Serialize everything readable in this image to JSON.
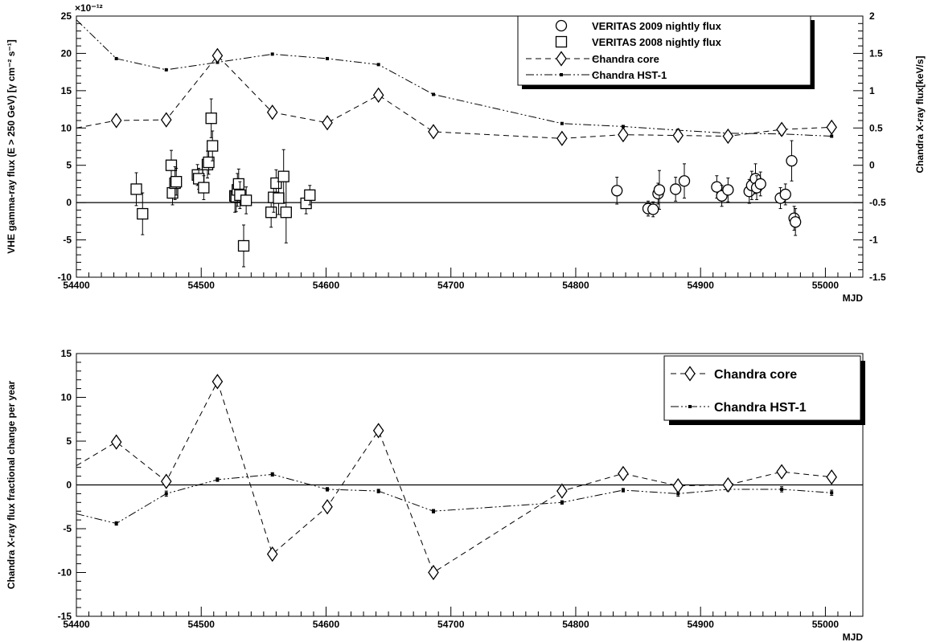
{
  "chart_data": [
    {
      "type": "scatter",
      "xlabel": "MJD",
      "ylabel": "VHE gamma-ray flux (E > 250 GeV) [γ cm⁻² s⁻¹]",
      "y2label": "Chandra X-ray flux[keV/s]",
      "y_exponent_label": "×10⁻¹²",
      "xlim": [
        54400,
        55030
      ],
      "ylim": [
        -10,
        25
      ],
      "y2lim": [
        -1.5,
        2
      ],
      "x_ticks": [
        "54400",
        "54500",
        "54600",
        "54700",
        "54800",
        "54900",
        "55000"
      ],
      "y_ticks": [
        "-10",
        "-5",
        "0",
        "5",
        "10",
        "15",
        "20",
        "25"
      ],
      "y2_ticks": [
        "-1.5",
        "-1",
        "-0.5",
        "0",
        "0.5",
        "1",
        "1.5",
        "2"
      ],
      "legend_position": "top-right",
      "legend": [
        "VERITAS 2009 nightly flux",
        "VERITAS 2008 nightly flux",
        "Chandra core",
        "Chandra HST-1"
      ],
      "series": [
        {
          "name": "VERITAS 2009 nightly flux",
          "marker": "open-circle",
          "axis": "left",
          "unit_exp": -12,
          "x": [
            54833,
            54858,
            54862,
            54866,
            54867,
            54880,
            54887,
            54913,
            54917,
            54922,
            54939,
            54941,
            54944,
            54945,
            54948,
            54964,
            54968,
            54973,
            54975,
            54976
          ],
          "y": [
            1.6,
            -0.8,
            -0.9,
            1.2,
            1.7,
            1.8,
            2.9,
            2.1,
            0.9,
            1.7,
            1.5,
            2.3,
            3.2,
            2.0,
            2.5,
            0.6,
            1.1,
            5.6,
            -2.1,
            -2.6
          ],
          "err": [
            1.8,
            1.0,
            1.0,
            1.4,
            2.6,
            1.6,
            2.3,
            1.5,
            1.4,
            1.6,
            1.6,
            1.9,
            2.0,
            1.6,
            1.6,
            1.4,
            1.4,
            2.7,
            1.6,
            1.8
          ]
        },
        {
          "name": "VERITAS 2008 nightly flux",
          "marker": "open-square",
          "axis": "left",
          "unit_exp": -12,
          "x": [
            54448,
            54453,
            54476,
            54477,
            54479,
            54480,
            54497,
            54498,
            54502,
            54505,
            54506,
            54508,
            54509,
            54527,
            54528,
            54529,
            54530,
            54531,
            54534,
            54536,
            54556,
            54558,
            54560,
            54562,
            54566,
            54568,
            54584,
            54587
          ],
          "y": [
            1.8,
            -1.5,
            5.0,
            1.3,
            2.6,
            2.8,
            3.7,
            3.2,
            2.0,
            5.1,
            5.4,
            11.3,
            7.6,
            0.9,
            0.8,
            1.7,
            2.5,
            1.0,
            -5.8,
            0.3,
            -1.3,
            0.7,
            2.6,
            0.6,
            3.5,
            -1.3,
            -0.1,
            1.0
          ],
          "err": [
            2.2,
            2.8,
            2.0,
            1.6,
            2.2,
            1.8,
            1.4,
            1.4,
            1.6,
            1.8,
            1.6,
            2.6,
            2.0,
            2.2,
            2.0,
            2.2,
            2.0,
            1.8,
            2.8,
            1.8,
            2.0,
            2.0,
            1.8,
            2.2,
            3.6,
            4.1,
            1.4,
            1.3
          ]
        },
        {
          "name": "Chandra core",
          "marker": "open-diamond",
          "line": "dashed",
          "axis": "right",
          "x": [
            54400,
            54432,
            54472,
            54513,
            54557,
            54601,
            54642,
            54686,
            54789,
            54838,
            54882,
            54922,
            54965,
            55005
          ],
          "y": [
            0.5,
            0.6,
            0.61,
            1.47,
            0.71,
            0.57,
            0.94,
            0.45,
            0.36,
            0.41,
            0.4,
            0.39,
            0.48,
            0.51
          ]
        },
        {
          "name": "Chandra HST-1",
          "marker": "small-dot",
          "line": "dash-dot-dot",
          "axis": "right",
          "x": [
            54400,
            54432,
            54472,
            54513,
            54557,
            54601,
            54642,
            54686,
            54789,
            54838,
            54882,
            54922,
            54965,
            55005
          ],
          "y": [
            1.95,
            1.43,
            1.28,
            1.38,
            1.49,
            1.43,
            1.35,
            0.95,
            0.56,
            0.52,
            0.47,
            0.43,
            0.42,
            0.39
          ]
        }
      ]
    },
    {
      "type": "line",
      "xlabel": "MJD",
      "ylabel": "Chandra X-ray flux fractional change per year",
      "xlim": [
        54400,
        55030
      ],
      "ylim": [
        -15,
        15
      ],
      "x_ticks": [
        "54400",
        "54500",
        "54600",
        "54700",
        "54800",
        "54900",
        "55000"
      ],
      "y_ticks": [
        "-15",
        "-10",
        "-5",
        "0",
        "5",
        "10",
        "15"
      ],
      "legend_position": "top-right",
      "legend": [
        "Chandra core",
        "Chandra HST-1"
      ],
      "series": [
        {
          "name": "Chandra core",
          "marker": "open-diamond",
          "line": "dashed",
          "x": [
            54400,
            54432,
            54472,
            54513,
            54557,
            54601,
            54642,
            54686,
            54789,
            54838,
            54882,
            54922,
            54965,
            55005
          ],
          "y": [
            2.2,
            4.9,
            0.4,
            11.8,
            -7.9,
            -2.5,
            6.2,
            -10.0,
            -0.7,
            1.3,
            -0.1,
            0.0,
            1.5,
            0.9
          ]
        },
        {
          "name": "Chandra HST-1",
          "marker": "small-dot",
          "line": "dash-dot-dot",
          "x": [
            54400,
            54432,
            54472,
            54513,
            54557,
            54601,
            54642,
            54686,
            54789,
            54838,
            54882,
            54922,
            54965,
            55005
          ],
          "y": [
            -3.3,
            -4.4,
            -1.0,
            0.6,
            1.2,
            -0.5,
            -0.7,
            -3.0,
            -2.0,
            -0.6,
            -1.0,
            -0.5,
            -0.5,
            -0.9
          ],
          "err": [
            0.2,
            0.2,
            0.3,
            0.2,
            0.2,
            0.2,
            0.2,
            0.2,
            0.2,
            0.2,
            0.3,
            0.2,
            0.3,
            0.3
          ]
        }
      ]
    }
  ]
}
